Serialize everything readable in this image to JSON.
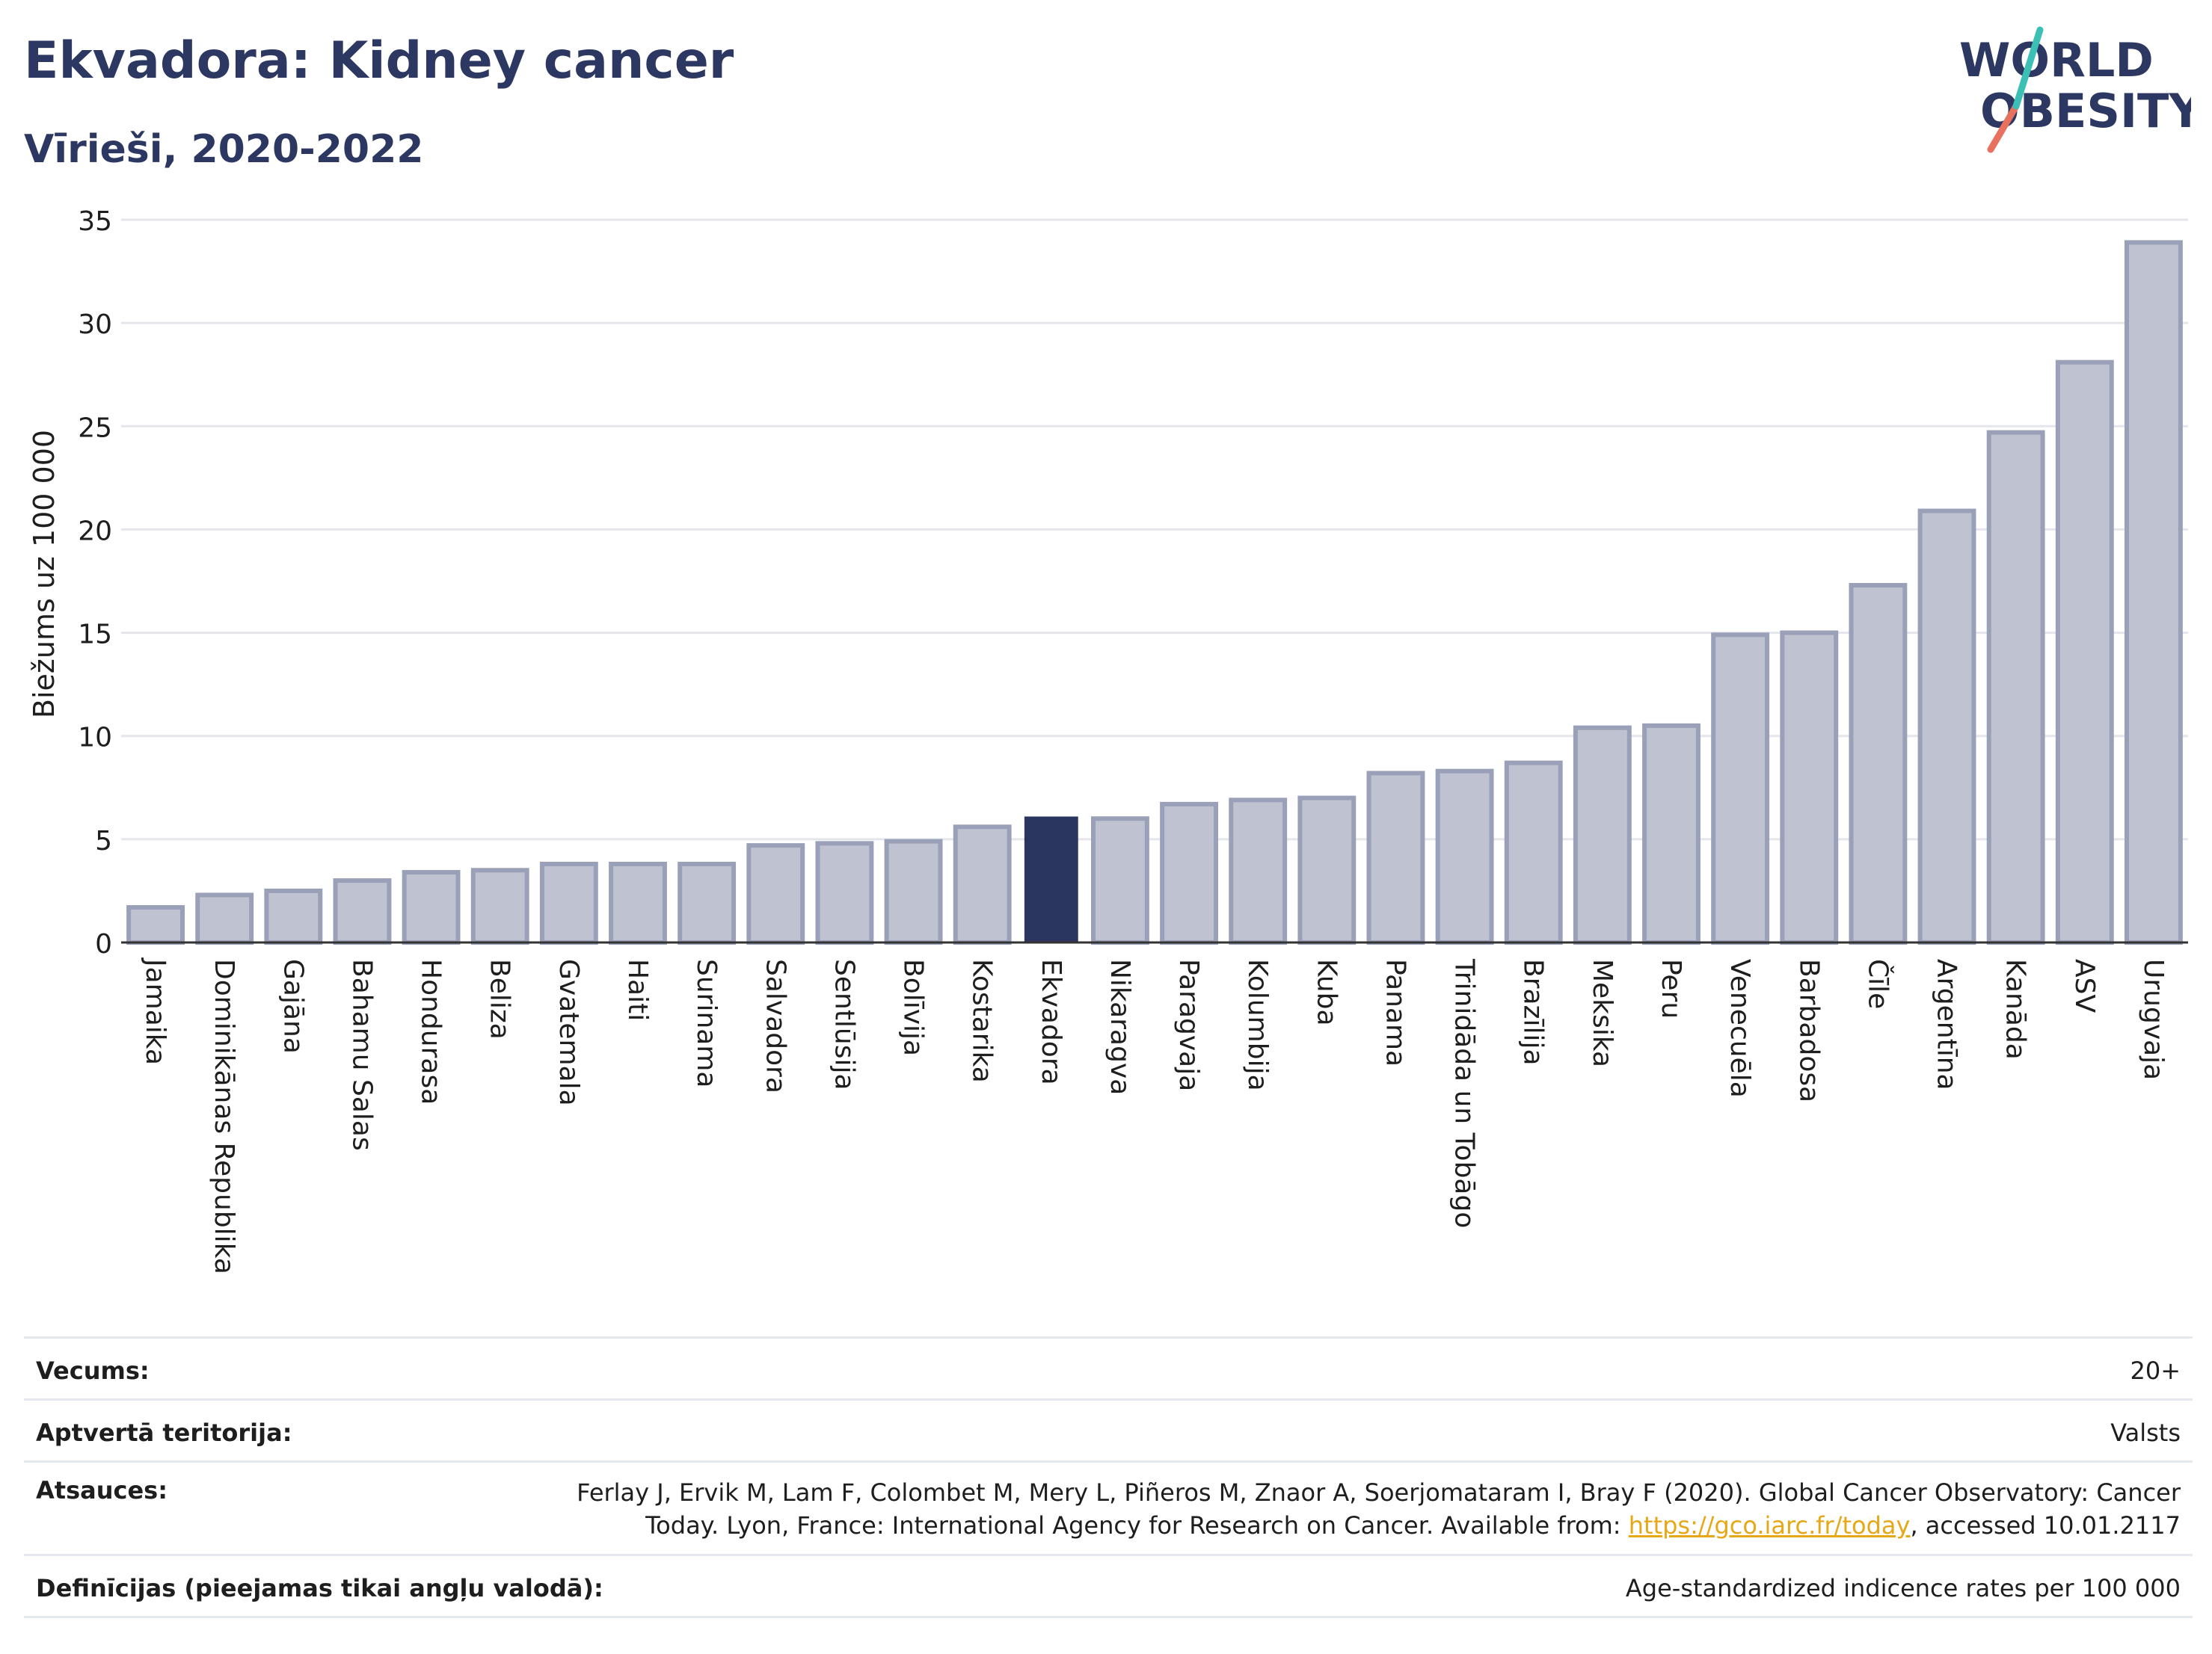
{
  "title": "Ekvadora: Kidney cancer",
  "subtitle": "Vīrieši, 2020-2022",
  "logo": {
    "line1": "WORLD",
    "line2": "OBESITY"
  },
  "colors": {
    "bar": "#bfc3d1",
    "bar_border": "#9aa0b8",
    "highlight": "#2b3660",
    "grid": "#e4e6ec",
    "axis": "#333333"
  },
  "chart_data": {
    "type": "bar",
    "ylabel": "Biežums uz 100 000",
    "ylim": [
      0,
      35
    ],
    "yticks": [
      0,
      5,
      10,
      15,
      20,
      25,
      30,
      35
    ],
    "highlight": "Ekvadora",
    "categories": [
      "Jamaika",
      "Dominikānas Republika",
      "Gajāna",
      "Bahamu Salas",
      "Hondurasa",
      "Beliza",
      "Gvatemala",
      "Haiti",
      "Surinama",
      "Salvadora",
      "Sentlūsija",
      "Bolīvija",
      "Kostarika",
      "Ekvadora",
      "Nikaragva",
      "Paragvaja",
      "Kolumbija",
      "Kuba",
      "Panama",
      "Trinidāda un Tobāgo",
      "Brazīlija",
      "Meksika",
      "Peru",
      "Venecuēla",
      "Barbadosa",
      "Čīle",
      "Argentīna",
      "Kanāda",
      "ASV",
      "Urugvaja"
    ],
    "values": [
      1.7,
      2.3,
      2.5,
      3.0,
      3.4,
      3.5,
      3.8,
      3.8,
      3.8,
      4.7,
      4.8,
      4.9,
      5.6,
      6.1,
      6.0,
      6.7,
      6.9,
      7.0,
      8.2,
      8.3,
      8.7,
      10.4,
      10.5,
      14.9,
      15.0,
      17.3,
      20.9,
      24.7,
      28.1,
      33.9
    ]
  },
  "meta": {
    "age_label": "Vecums:",
    "age_value": "20+",
    "territory_label": "Aptvertā teritorija:",
    "territory_value": "Valsts",
    "sources_label": "Atsauces:",
    "sources_text_1": "Ferlay J, Ervik M, Lam F, Colombet M, Mery L, Piñeros M, Znaor A, Soerjomataram I, Bray F (2020). Global Cancer Observatory: Cancer Today. Lyon, France: International Agency for Research on Cancer. Available from: ",
    "sources_link": "https://gco.iarc.fr/today",
    "sources_text_2": ", accessed 10.01.2117",
    "definitions_label": "Definīcijas (pieejamas tikai angļu valodā):",
    "definitions_value": "Age-standardized indicence rates per 100 000"
  }
}
